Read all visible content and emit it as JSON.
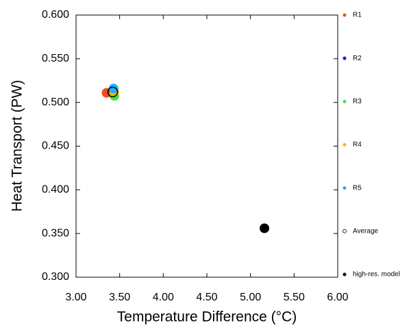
{
  "chart_data": {
    "type": "scatter",
    "x_label": "Temperature Difference (°C)",
    "y_label": "Heat Transport (PW)",
    "xlim": [
      3.0,
      6.0
    ],
    "ylim": [
      0.3,
      0.6
    ],
    "xticks": [
      {
        "value": 3.0,
        "label": "3.00"
      },
      {
        "value": 3.5,
        "label": "3.50"
      },
      {
        "value": 4.0,
        "label": "4.00"
      },
      {
        "value": 4.5,
        "label": "4.50"
      },
      {
        "value": 5.0,
        "label": "5.00"
      },
      {
        "value": 5.5,
        "label": "5.50"
      },
      {
        "value": 6.0,
        "label": "6.00"
      }
    ],
    "yticks": [
      {
        "value": 0.3,
        "label": "0.300"
      },
      {
        "value": 0.35,
        "label": "0.350"
      },
      {
        "value": 0.4,
        "label": "0.400"
      },
      {
        "value": 0.45,
        "label": "0.450"
      },
      {
        "value": 0.5,
        "label": "0.500"
      },
      {
        "value": 0.55,
        "label": "0.550"
      },
      {
        "value": 0.6,
        "label": "0.600"
      }
    ],
    "legend": "right",
    "series": [
      {
        "name": "R1",
        "color": "#f04e1a",
        "marker": "filled",
        "x": [
          3.35
        ],
        "values": [
          0.511
        ]
      },
      {
        "name": "R2",
        "color": "#2a00d5",
        "marker": "filled",
        "x": [
          3.43
        ],
        "values": [
          0.514
        ]
      },
      {
        "name": "R3",
        "color": "#3ee53e",
        "marker": "filled",
        "x": [
          3.44
        ],
        "values": [
          0.5075
        ]
      },
      {
        "name": "R4",
        "color": "#ffb300",
        "marker": "filled",
        "x": [
          3.44
        ],
        "values": [
          0.512
        ]
      },
      {
        "name": "R5",
        "color": "#1ab2ff",
        "marker": "filled",
        "x": [
          3.43
        ],
        "values": [
          0.516
        ]
      },
      {
        "name": "Average",
        "color": "#000000",
        "marker": "open",
        "x": [
          3.42
        ],
        "values": [
          0.512
        ]
      },
      {
        "name": "high-res. model",
        "color": "#000000",
        "marker": "filled",
        "x": [
          5.16
        ],
        "values": [
          0.356
        ]
      }
    ]
  }
}
